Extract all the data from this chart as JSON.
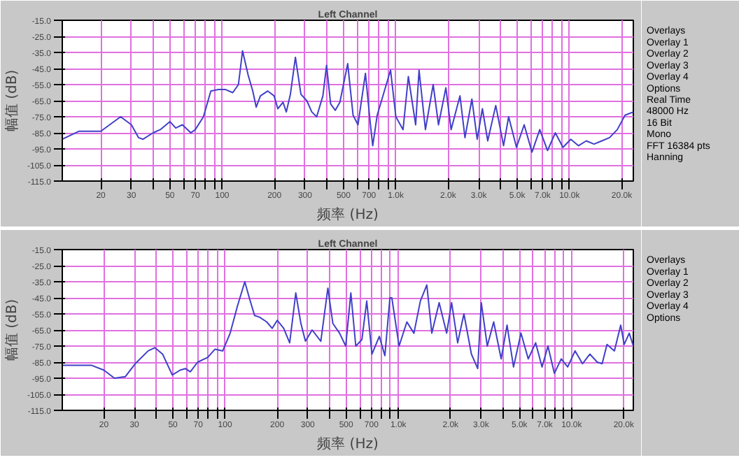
{
  "chart_data": [
    {
      "type": "line",
      "title": "Left Channel",
      "xlabel": "频率 (Hz)",
      "ylabel": "幅值 (dB)",
      "log": "x",
      "grid": true,
      "xlim": [
        12,
        23300
      ],
      "ylim": [
        -115,
        -15
      ],
      "xticks": [
        20,
        30,
        {
          "value": 40,
          "label": null
        },
        50,
        {
          "value": 60,
          "label": null
        },
        70,
        {
          "value": 80,
          "label": null
        },
        {
          "value": 90,
          "label": null
        },
        100,
        200,
        300,
        {
          "value": 400,
          "label": null
        },
        500,
        {
          "value": 600,
          "label": null
        },
        700,
        {
          "value": 800,
          "label": null
        },
        {
          "value": 900,
          "label": null
        },
        {
          "value": 1000,
          "label": "1.0k"
        },
        {
          "value": 2000,
          "label": "2.0k"
        },
        {
          "value": 3000,
          "label": "3.0k"
        },
        {
          "value": 4000,
          "label": null
        },
        {
          "value": 5000,
          "label": "5.0k"
        },
        {
          "value": 6000,
          "label": null
        },
        {
          "value": 7000,
          "label": "7.0k"
        },
        {
          "value": 8000,
          "label": null
        },
        {
          "value": 9000,
          "label": null
        },
        {
          "value": 10000,
          "label": "10.0k"
        },
        {
          "value": 20000,
          "label": "20.0k"
        }
      ],
      "yticks": [
        {
          "value": -115,
          "label": "-115.0"
        },
        {
          "value": -105,
          "label": "-105.0"
        },
        {
          "value": -95,
          "label": "-95.0"
        },
        {
          "value": -85,
          "label": "-85.0"
        },
        {
          "value": -75,
          "label": "-75.0"
        },
        {
          "value": -65,
          "label": "-65.0"
        },
        {
          "value": -55,
          "label": "-55.0"
        },
        {
          "value": -45,
          "label": "-45.0"
        },
        {
          "value": -35,
          "label": "-35.0"
        },
        {
          "value": -25,
          "label": "-25.0"
        },
        {
          "value": -15,
          "label": "-15.0"
        }
      ],
      "annotations": [
        "Overlays",
        "Overlay 1",
        "Overlay 2",
        "Overlay 3",
        "Overlay 4",
        "Options",
        "Real Time",
        "48000 Hz",
        "16 Bit",
        "Mono",
        "FFT 16384 pts",
        "Hanning"
      ],
      "series": [
        {
          "color": "#4040c8",
          "x": [
            12,
            15,
            20,
            26,
            30,
            33,
            35,
            40,
            44,
            50,
            54,
            59,
            66,
            70,
            78,
            86,
            95,
            104,
            115,
            124,
            131,
            141,
            150,
            157,
            166,
            183,
            199,
            209,
            224,
            234,
            247,
            264,
            284,
            307,
            328,
            350,
            380,
            399,
            421,
            448,
            476,
            528,
            567,
            605,
            668,
            709,
            736,
            781,
            932,
            1000,
            1100,
            1180,
            1300,
            1360,
            1480,
            1640,
            1760,
            1940,
            2080,
            2340,
            2500,
            2740,
            2940,
            3150,
            3380,
            3760,
            4170,
            4460,
            4950,
            5480,
            6080,
            6740,
            7470,
            8280,
            9170,
            10170,
            11270,
            12490,
            13840,
            15340,
            17000,
            18840,
            20880,
            23300
          ],
          "values": [
            -89,
            -84,
            -84,
            -75,
            -80,
            -88,
            -89,
            -85,
            -83,
            -78,
            -82,
            -80,
            -85,
            -83,
            -75,
            -59,
            -58,
            -58,
            -60,
            -55,
            -34,
            -49,
            -59,
            -69,
            -62,
            -59,
            -62,
            -70,
            -66,
            -72,
            -61,
            -38,
            -61,
            -65,
            -72,
            -75,
            -62,
            -43,
            -67,
            -71,
            -66,
            -42,
            -74,
            -80,
            -48,
            -77,
            -93,
            -74,
            -46,
            -75,
            -83,
            -50,
            -80,
            -46,
            -83,
            -55,
            -80,
            -57,
            -83,
            -62,
            -88,
            -64,
            -89,
            -70,
            -90,
            -68,
            -93,
            -75,
            -94,
            -80,
            -97,
            -83,
            -96,
            -85,
            -94,
            -89,
            -93,
            -90,
            -92,
            -90,
            -88,
            -83,
            -74,
            -72
          ]
        }
      ]
    },
    {
      "type": "line",
      "title": "Left Channel",
      "xlabel": "频率 (Hz)",
      "ylabel": "幅值 (dB)",
      "log": "x",
      "grid": true,
      "xlim": [
        11.5,
        22700
      ],
      "ylim": [
        -115,
        -15
      ],
      "xticks": [
        20,
        30,
        {
          "value": 40,
          "label": null
        },
        50,
        {
          "value": 60,
          "label": null
        },
        70,
        {
          "value": 80,
          "label": null
        },
        {
          "value": 90,
          "label": null
        },
        100,
        200,
        300,
        {
          "value": 400,
          "label": null
        },
        500,
        {
          "value": 600,
          "label": null
        },
        700,
        {
          "value": 800,
          "label": null
        },
        {
          "value": 900,
          "label": null
        },
        {
          "value": 1000,
          "label": "1.0k"
        },
        {
          "value": 2000,
          "label": "2.0k"
        },
        {
          "value": 3000,
          "label": "3.0k"
        },
        {
          "value": 4000,
          "label": null
        },
        {
          "value": 5000,
          "label": "5.0k"
        },
        {
          "value": 6000,
          "label": null
        },
        {
          "value": 7000,
          "label": "7.0k"
        },
        {
          "value": 8000,
          "label": null
        },
        {
          "value": 9000,
          "label": null
        },
        {
          "value": 10000,
          "label": "10.0k"
        },
        {
          "value": 20000,
          "label": "20.0k"
        }
      ],
      "yticks": [
        {
          "value": -115,
          "label": "-115.0"
        },
        {
          "value": -105,
          "label": "-105.0"
        },
        {
          "value": -95,
          "label": "-95.0"
        },
        {
          "value": -85,
          "label": "-85.0"
        },
        {
          "value": -75,
          "label": "-75.0"
        },
        {
          "value": -65,
          "label": "-65.0"
        },
        {
          "value": -55,
          "label": "-55.0"
        },
        {
          "value": -45,
          "label": "-45.0"
        },
        {
          "value": -35,
          "label": "-35.0"
        },
        {
          "value": -25,
          "label": "-25.0"
        },
        {
          "value": -15,
          "label": "-15.0"
        }
      ],
      "annotations": [
        "Overlays",
        "Overlay 1",
        "Overlay 2",
        "Overlay 3",
        "Overlay 4",
        "Options"
      ],
      "series": [
        {
          "color": "#4040c8",
          "x": [
            11.5,
            17,
            20,
            23,
            26.6,
            30.3,
            36,
            39.3,
            43.6,
            49.6,
            55,
            59,
            63,
            69.5,
            79.5,
            87.4,
            97,
            107,
            118,
            130,
            138,
            148,
            158,
            174,
            187,
            200,
            218,
            236,
            256,
            274,
            291,
            318,
            357,
            392,
            419,
            458,
            497,
            532,
            568,
            616,
            657,
            704,
            777,
            836,
            894,
            917,
            1010,
            1120,
            1230,
            1340,
            1460,
            1560,
            1720,
            1900,
            2030,
            2200,
            2390,
            2640,
            2870,
            3010,
            3260,
            3550,
            3920,
            4240,
            4620,
            5100,
            5620,
            6200,
            6750,
            7300,
            7950,
            8710,
            9490,
            10470,
            11550,
            12740,
            14050,
            15000,
            16000,
            17650,
            19200,
            20100,
            21500,
            22700
          ],
          "values": [
            -87,
            -87,
            -90,
            -95,
            -94,
            -86,
            -78,
            -76,
            -80,
            -93,
            -90,
            -89,
            -91,
            -85,
            -82,
            -77,
            -78,
            -67,
            -50,
            -35,
            -45,
            -56,
            -57,
            -60,
            -64,
            -59,
            -64,
            -73,
            -42,
            -61,
            -72,
            -65,
            -72,
            -39,
            -61,
            -67,
            -75,
            -42,
            -75,
            -71,
            -47,
            -80,
            -69,
            -81,
            -45,
            -45,
            -75,
            -60,
            -67,
            -47,
            -37,
            -67,
            -48,
            -67,
            -48,
            -73,
            -55,
            -80,
            -89,
            -48,
            -75,
            -60,
            -83,
            -62,
            -88,
            -67,
            -83,
            -73,
            -88,
            -75,
            -92,
            -83,
            -88,
            -78,
            -86,
            -80,
            -85,
            -86,
            -74,
            -78,
            -62,
            -74,
            -67,
            -75
          ]
        }
      ]
    }
  ]
}
